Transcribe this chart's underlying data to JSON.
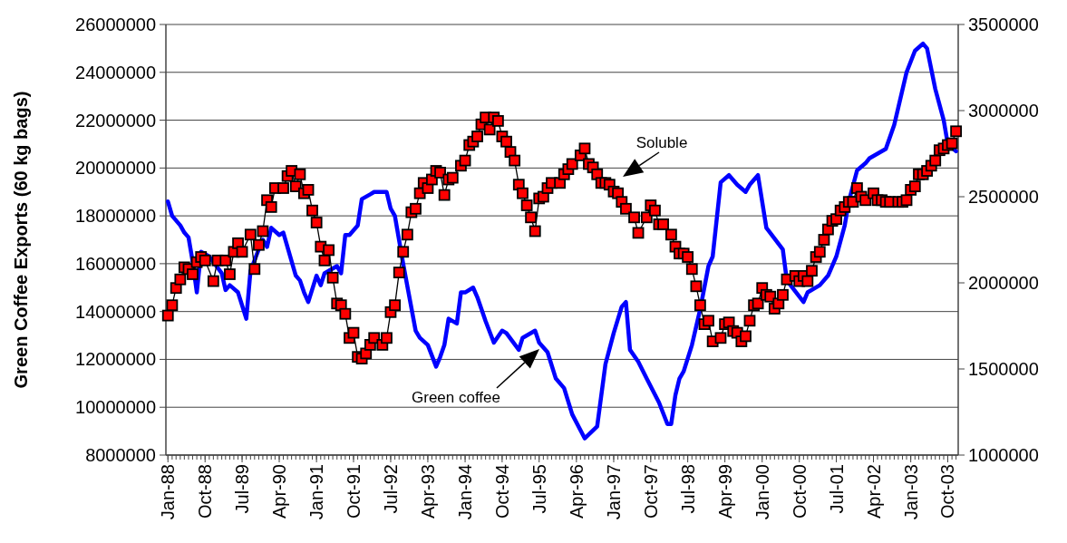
{
  "chart_data": {
    "type": "line",
    "ylabel": "Green Coffee Exports (60 kg bags)",
    "xlim": [
      "1987-12-17",
      "2003-12-17"
    ],
    "xticks": [
      {
        "value": "1988-01",
        "label": "Jan-88"
      },
      {
        "value": "1988-10",
        "label": "Oct-88"
      },
      {
        "value": "1989-07",
        "label": "Jul-89"
      },
      {
        "value": "1990-04",
        "label": "Apr-90"
      },
      {
        "value": "1991-01",
        "label": "Jan-91"
      },
      {
        "value": "1991-10",
        "label": "Oct-91"
      },
      {
        "value": "1992-07",
        "label": "Jul-92"
      },
      {
        "value": "1993-04",
        "label": "Apr-93"
      },
      {
        "value": "1994-01",
        "label": "Jan-94"
      },
      {
        "value": "1994-10",
        "label": "Oct-94"
      },
      {
        "value": "1995-07",
        "label": "Jul-95"
      },
      {
        "value": "1996-04",
        "label": "Apr-96"
      },
      {
        "value": "1997-01",
        "label": "Jan-97"
      },
      {
        "value": "1997-10",
        "label": "Oct-97"
      },
      {
        "value": "1998-07",
        "label": "Jul-98"
      },
      {
        "value": "1999-04",
        "label": "Apr-99"
      },
      {
        "value": "2000-01",
        "label": "Jan-00"
      },
      {
        "value": "2000-10",
        "label": "Oct-00"
      },
      {
        "value": "2001-07",
        "label": "Jul-01"
      },
      {
        "value": "2002-04",
        "label": "Apr-02"
      },
      {
        "value": "2003-01",
        "label": "Jan-03"
      },
      {
        "value": "2003-10",
        "label": "Oct-03"
      }
    ],
    "ylim": [
      8000000,
      26000000
    ],
    "yticks": [
      8000000,
      10000000,
      12000000,
      14000000,
      16000000,
      18000000,
      20000000,
      22000000,
      24000000,
      26000000
    ],
    "y2lim": [
      1000000,
      3500000
    ],
    "y2ticks": [
      1000000,
      1500000,
      2000000,
      2500000,
      3000000,
      3500000
    ],
    "grid": "y",
    "line_style": "solid",
    "annotations": [
      "Soluble",
      "Green coffee"
    ],
    "series": [
      {
        "color": "#0000ff",
        "marker": "none",
        "x": [
          "1988-01",
          "1988-02",
          "1988-04",
          "1988-05",
          "1988-06",
          "1988-07",
          "1988-08",
          "1988-09",
          "1988-11",
          "1989-02",
          "1989-03",
          "1989-04",
          "1989-06",
          "1989-08",
          "1989-09",
          "1989-11",
          "1989-12",
          "1990-01",
          "1990-02",
          "1990-04",
          "1990-05",
          "1990-08",
          "1990-09",
          "1990-10",
          "1990-11",
          "1991-01",
          "1991-02",
          "1991-03",
          "1991-06",
          "1991-07",
          "1991-08",
          "1991-09",
          "1991-11",
          "1991-12",
          "1992-02",
          "1992-03",
          "1992-06",
          "1992-07",
          "1992-08",
          "1992-10",
          "1993-01",
          "1993-02",
          "1993-04",
          "1993-06",
          "1993-07",
          "1993-08",
          "1993-09",
          "1993-11",
          "1993-12",
          "1994-01",
          "1994-03",
          "1994-04",
          "1994-06",
          "1994-08",
          "1994-10",
          "1994-11",
          "1995-02",
          "1995-03",
          "1995-06",
          "1995-07",
          "1995-09",
          "1995-11",
          "1996-01",
          "1996-03",
          "1996-06",
          "1996-09",
          "1996-11",
          "1997-01",
          "1997-03",
          "1997-04",
          "1997-05",
          "1997-07",
          "1997-09",
          "1997-12",
          "1998-02",
          "1998-03",
          "1998-04",
          "1998-05",
          "1998-06",
          "1998-08",
          "1998-10",
          "1998-12",
          "1999-01",
          "1999-03",
          "1999-05",
          "1999-07",
          "1999-09",
          "1999-10",
          "1999-12",
          "2000-02",
          "2000-06",
          "2000-07",
          "2000-11",
          "2000-12",
          "2001-03",
          "2001-05",
          "2001-07",
          "2001-09",
          "2001-10",
          "2001-12",
          "2002-02",
          "2002-03",
          "2002-05",
          "2002-07",
          "2002-09",
          "2002-12",
          "2003-02",
          "2003-04",
          "2003-05",
          "2003-07",
          "2003-09",
          "2003-10",
          "2003-12"
        ],
        "values": [
          18600000,
          18000000,
          17600000,
          17300000,
          17100000,
          16100000,
          14800000,
          16500000,
          16300000,
          15600000,
          14900000,
          15100000,
          14800000,
          13700000,
          15700000,
          16600000,
          17000000,
          16700000,
          17500000,
          17200000,
          17300000,
          15500000,
          15300000,
          14800000,
          14400000,
          15500000,
          15100000,
          15600000,
          15900000,
          15600000,
          17200000,
          17200000,
          17600000,
          18700000,
          18900000,
          19000000,
          19000000,
          18300000,
          18000000,
          16000000,
          13200000,
          12900000,
          12600000,
          11700000,
          12100000,
          12600000,
          13700000,
          13500000,
          14800000,
          14800000,
          15000000,
          14600000,
          13600000,
          12700000,
          13200000,
          13100000,
          12400000,
          12900000,
          13200000,
          12700000,
          12300000,
          11200000,
          10800000,
          9700000,
          8700000,
          9200000,
          11800000,
          13100000,
          14200000,
          14400000,
          12400000,
          11900000,
          11200000,
          10200000,
          9300000,
          9300000,
          10500000,
          11200000,
          11500000,
          12600000,
          14100000,
          15900000,
          16300000,
          19400000,
          19700000,
          19300000,
          19000000,
          19300000,
          19700000,
          17500000,
          16600000,
          15300000,
          14400000,
          14800000,
          15100000,
          15500000,
          16300000,
          17600000,
          18600000,
          19900000,
          20200000,
          20400000,
          20600000,
          20800000,
          21800000,
          24000000,
          24900000,
          25200000,
          25000000,
          23300000,
          22000000,
          21000000,
          20700000
        ]
      },
      {
        "color": "#ff0000",
        "marker": "square",
        "axis": "y2",
        "x": [
          "1988-01",
          "1988-02",
          "1988-03",
          "1988-04",
          "1988-05",
          "1988-06",
          "1988-07",
          "1988-08",
          "1988-09",
          "1988-10",
          "1988-12",
          "1989-01",
          "1989-03",
          "1989-04",
          "1989-05",
          "1989-06",
          "1989-07",
          "1989-09",
          "1989-10",
          "1989-11",
          "1989-12",
          "1990-01",
          "1990-02",
          "1990-03",
          "1990-05",
          "1990-06",
          "1990-07",
          "1990-08",
          "1990-09",
          "1990-10",
          "1990-11",
          "1990-12",
          "1991-01",
          "1991-02",
          "1991-03",
          "1991-04",
          "1991-05",
          "1991-06",
          "1991-07",
          "1991-08",
          "1991-09",
          "1991-10",
          "1991-11",
          "1991-12",
          "1992-01",
          "1992-02",
          "1992-03",
          "1992-05",
          "1992-06",
          "1992-07",
          "1992-08",
          "1992-09",
          "1992-10",
          "1992-11",
          "1992-12",
          "1993-01",
          "1993-02",
          "1993-03",
          "1993-04",
          "1993-05",
          "1993-06",
          "1993-07",
          "1993-08",
          "1993-09",
          "1993-10",
          "1993-12",
          "1994-01",
          "1994-02",
          "1994-03",
          "1994-04",
          "1994-05",
          "1994-06",
          "1994-07",
          "1994-08",
          "1994-09",
          "1994-10",
          "1994-11",
          "1994-12",
          "1995-01",
          "1995-02",
          "1995-03",
          "1995-04",
          "1995-05",
          "1995-06",
          "1995-07",
          "1995-08",
          "1995-09",
          "1995-10",
          "1995-12",
          "1996-01",
          "1996-02",
          "1996-03",
          "1996-05",
          "1996-06",
          "1996-07",
          "1996-08",
          "1996-09",
          "1996-10",
          "1996-11",
          "1996-12",
          "1997-01",
          "1997-02",
          "1997-03",
          "1997-04",
          "1997-06",
          "1997-07",
          "1997-09",
          "1997-10",
          "1997-11",
          "1997-12",
          "1998-01",
          "1998-03",
          "1998-04",
          "1998-05",
          "1998-06",
          "1998-07",
          "1998-08",
          "1998-09",
          "1998-10",
          "1998-11",
          "1998-12",
          "1999-01",
          "1999-03",
          "1999-04",
          "1999-05",
          "1999-06",
          "1999-07",
          "1999-08",
          "1999-09",
          "1999-10",
          "1999-11",
          "1999-12",
          "2000-01",
          "2000-02",
          "2000-03",
          "2000-04",
          "2000-05",
          "2000-06",
          "2000-07",
          "2000-09",
          "2000-10",
          "2000-11",
          "2000-12",
          "2001-01",
          "2001-02",
          "2001-03",
          "2001-04",
          "2001-05",
          "2001-06",
          "2001-07",
          "2001-08",
          "2001-09",
          "2001-10",
          "2001-11",
          "2001-12",
          "2002-01",
          "2002-02",
          "2002-04",
          "2002-05",
          "2002-06",
          "2002-07",
          "2002-08",
          "2002-10",
          "2002-11",
          "2002-12",
          "2003-01",
          "2003-02",
          "2003-03",
          "2003-04",
          "2003-05",
          "2003-06",
          "2003-07",
          "2003-08",
          "2003-09",
          "2003-10",
          "2003-11",
          "2003-12"
        ],
        "values": [
          1810000,
          1870000,
          1970000,
          2020000,
          2090000,
          2080000,
          2050000,
          2120000,
          2150000,
          2130000,
          2010000,
          2130000,
          2130000,
          2050000,
          2180000,
          2230000,
          2180000,
          2280000,
          2080000,
          2220000,
          2300000,
          2480000,
          2440000,
          2550000,
          2550000,
          2620000,
          2650000,
          2560000,
          2630000,
          2520000,
          2540000,
          2420000,
          2350000,
          2210000,
          2130000,
          2190000,
          2030000,
          1880000,
          1870000,
          1820000,
          1680000,
          1710000,
          1570000,
          1560000,
          1590000,
          1640000,
          1680000,
          1640000,
          1680000,
          1830000,
          1870000,
          2060000,
          2180000,
          2280000,
          2410000,
          2430000,
          2520000,
          2580000,
          2550000,
          2600000,
          2650000,
          2640000,
          2510000,
          2600000,
          2610000,
          2680000,
          2710000,
          2800000,
          2820000,
          2850000,
          2920000,
          2960000,
          2890000,
          2960000,
          2940000,
          2850000,
          2820000,
          2760000,
          2710000,
          2570000,
          2520000,
          2450000,
          2380000,
          2300000,
          2490000,
          2500000,
          2550000,
          2580000,
          2580000,
          2630000,
          2660000,
          2690000,
          2740000,
          2780000,
          2690000,
          2670000,
          2630000,
          2580000,
          2580000,
          2570000,
          2530000,
          2520000,
          2470000,
          2430000,
          2380000,
          2290000,
          2380000,
          2450000,
          2420000,
          2340000,
          2340000,
          2280000,
          2210000,
          2170000,
          2170000,
          2150000,
          2080000,
          1980000,
          1870000,
          1760000,
          1780000,
          1660000,
          1680000,
          1760000,
          1770000,
          1720000,
          1710000,
          1660000,
          1690000,
          1780000,
          1870000,
          1880000,
          1970000,
          1930000,
          1920000,
          1850000,
          1880000,
          1930000,
          2020000,
          2040000,
          2010000,
          2040000,
          2010000,
          2070000,
          2150000,
          2180000,
          2250000,
          2310000,
          2360000,
          2370000,
          2420000,
          2440000,
          2470000,
          2470000,
          2550000,
          2500000,
          2480000,
          2520000,
          2480000,
          2480000,
          2470000,
          2470000,
          2470000,
          2470000,
          2480000,
          2540000,
          2560000,
          2630000,
          2630000,
          2650000,
          2680000,
          2710000,
          2770000,
          2780000,
          2800000,
          2810000,
          2880000
        ]
      }
    ]
  }
}
